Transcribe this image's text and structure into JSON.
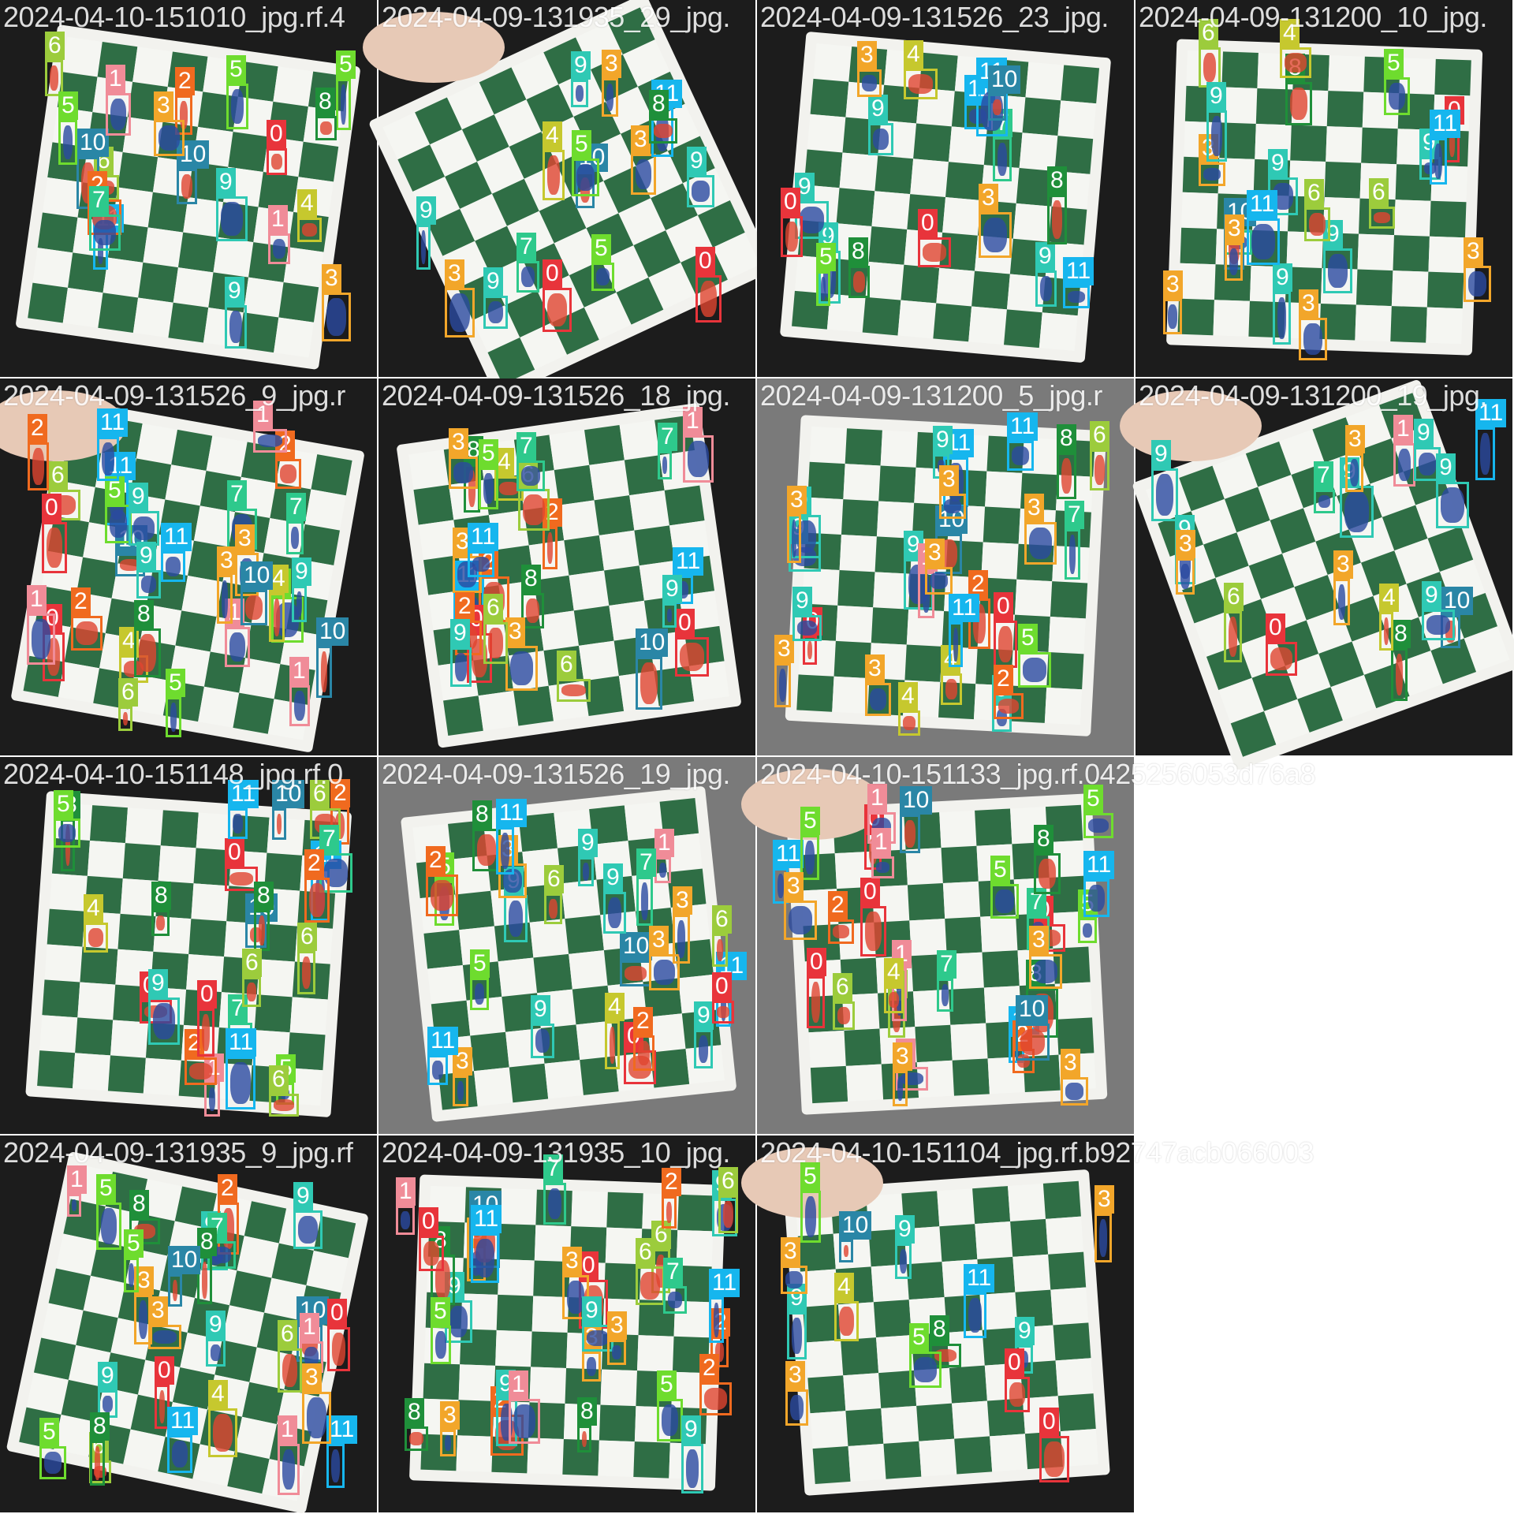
{
  "palette": {
    "0": "#e8343b",
    "1": "#f08c98",
    "2": "#f06a1f",
    "3": "#f2a62a",
    "4": "#c6c82e",
    "5": "#6edc2e",
    "6": "#9ccc3c",
    "7": "#2ec98c",
    "8": "#1f8f3a",
    "9": "#2fc9b4",
    "10": "#2a86a6",
    "11": "#16b6ee"
  },
  "tiles": [
    {
      "name": "2024-04-10-151010_jpg.rf.4",
      "scene": "dark",
      "labels": [
        {
          "c": "6"
        },
        {
          "c": "4"
        },
        {
          "c": "1"
        },
        {
          "c": "11"
        },
        {
          "c": "2"
        },
        {
          "c": "5"
        },
        {
          "c": "10"
        },
        {
          "c": "1"
        },
        {
          "c": "2"
        },
        {
          "c": "0"
        },
        {
          "c": "8"
        },
        {
          "c": "7"
        },
        {
          "c": "5"
        },
        {
          "c": "6"
        },
        {
          "c": "9"
        },
        {
          "c": "10"
        },
        {
          "c": "3"
        },
        {
          "c": "5"
        },
        {
          "c": "3"
        },
        {
          "c": "9"
        }
      ]
    },
    {
      "name": "2024-04-09-131935_29_jpg.",
      "scene": "board",
      "labels": [
        {
          "c": "4"
        },
        {
          "c": "3"
        },
        {
          "c": "11"
        },
        {
          "c": "9"
        },
        {
          "c": "9"
        },
        {
          "c": "10"
        },
        {
          "c": "8"
        },
        {
          "c": "0"
        },
        {
          "c": "0"
        },
        {
          "c": "9"
        },
        {
          "c": "5"
        },
        {
          "c": "3"
        },
        {
          "c": "5"
        },
        {
          "c": "3"
        },
        {
          "c": "9"
        },
        {
          "c": "7"
        }
      ]
    },
    {
      "name": "2024-04-09-131526_23_jpg.",
      "scene": "board",
      "labels": [
        {
          "c": "7"
        },
        {
          "c": "11"
        },
        {
          "c": "9"
        },
        {
          "c": "8"
        },
        {
          "c": "11"
        },
        {
          "c": "9"
        },
        {
          "c": "4"
        },
        {
          "c": "3"
        },
        {
          "c": "10"
        },
        {
          "c": "9"
        },
        {
          "c": "9"
        },
        {
          "c": "0"
        },
        {
          "c": "0"
        },
        {
          "c": "8"
        },
        {
          "c": "11"
        },
        {
          "c": "3"
        },
        {
          "c": "5"
        }
      ]
    },
    {
      "name": "2024-04-09-131200_10_jpg.",
      "scene": "board",
      "labels": [
        {
          "c": "0"
        },
        {
          "c": "3"
        },
        {
          "c": "9"
        },
        {
          "c": "6"
        },
        {
          "c": "7"
        },
        {
          "c": "5"
        },
        {
          "c": "3"
        },
        {
          "c": "11"
        },
        {
          "c": "9"
        },
        {
          "c": "10"
        },
        {
          "c": "3"
        },
        {
          "c": "8"
        },
        {
          "c": "9"
        },
        {
          "c": "11"
        },
        {
          "c": "9"
        },
        {
          "c": "3"
        },
        {
          "c": "6"
        },
        {
          "c": "4"
        },
        {
          "c": "3"
        },
        {
          "c": "9"
        },
        {
          "c": "6"
        }
      ]
    },
    {
      "name": "2024-04-09-131526_9_jpg.r",
      "scene": "board",
      "labels": [
        {
          "c": "6"
        },
        {
          "c": "4"
        },
        {
          "c": "1"
        },
        {
          "c": "11"
        },
        {
          "c": "2"
        },
        {
          "c": "10"
        },
        {
          "c": "1"
        },
        {
          "c": "2"
        },
        {
          "c": "0"
        },
        {
          "c": "8"
        },
        {
          "c": "7"
        },
        {
          "c": "5"
        },
        {
          "c": "11"
        },
        {
          "c": "9"
        },
        {
          "c": "2"
        },
        {
          "c": "1"
        },
        {
          "c": "7"
        },
        {
          "c": "9"
        },
        {
          "c": "6"
        },
        {
          "c": "3"
        },
        {
          "c": "5"
        },
        {
          "c": "4"
        },
        {
          "c": "3"
        },
        {
          "c": "10"
        },
        {
          "c": "0"
        },
        {
          "c": "5"
        },
        {
          "c": "11"
        },
        {
          "c": "10"
        },
        {
          "c": "9"
        },
        {
          "c": "1"
        }
      ]
    },
    {
      "name": "2024-04-09-131526_18_jpg.",
      "scene": "board",
      "labels": [
        {
          "c": "4"
        },
        {
          "c": "11"
        },
        {
          "c": "11"
        },
        {
          "c": "10"
        },
        {
          "c": "8"
        },
        {
          "c": "0"
        },
        {
          "c": "2"
        },
        {
          "c": "0"
        },
        {
          "c": "7"
        },
        {
          "c": "6"
        },
        {
          "c": "3"
        },
        {
          "c": "8"
        },
        {
          "c": "3"
        },
        {
          "c": "2"
        },
        {
          "c": "9"
        },
        {
          "c": "1"
        },
        {
          "c": "3"
        },
        {
          "c": "5"
        },
        {
          "c": "6"
        },
        {
          "c": "2"
        },
        {
          "c": "11"
        },
        {
          "c": "6"
        },
        {
          "c": "9"
        },
        {
          "c": "7"
        }
      ]
    },
    {
      "name": "2024-04-09-131200_5_jpg.r",
      "scene": "board",
      "labels": [
        {
          "c": "11"
        },
        {
          "c": "9"
        },
        {
          "c": "8"
        },
        {
          "c": "9"
        },
        {
          "c": "6"
        },
        {
          "c": "9"
        },
        {
          "c": "7"
        },
        {
          "c": "9"
        },
        {
          "c": "10"
        },
        {
          "c": "9"
        },
        {
          "c": "3"
        },
        {
          "c": "2"
        },
        {
          "c": "0"
        },
        {
          "c": "3"
        },
        {
          "c": "1"
        },
        {
          "c": "3"
        },
        {
          "c": "4"
        },
        {
          "c": "0"
        },
        {
          "c": "3"
        },
        {
          "c": "2"
        },
        {
          "c": "3"
        },
        {
          "c": "5"
        },
        {
          "c": "11"
        },
        {
          "c": "9"
        },
        {
          "c": "4"
        },
        {
          "c": "3"
        },
        {
          "c": "11"
        }
      ]
    },
    {
      "name": "2024-04-09-131200_19_jpg.",
      "scene": "board",
      "labels": [
        {
          "c": "1"
        },
        {
          "c": "9"
        },
        {
          "c": "10"
        },
        {
          "c": "0"
        },
        {
          "c": "3"
        },
        {
          "c": "9"
        },
        {
          "c": "7"
        },
        {
          "c": "9"
        },
        {
          "c": "6"
        },
        {
          "c": "9"
        },
        {
          "c": "8"
        },
        {
          "c": "9"
        },
        {
          "c": "11"
        },
        {
          "c": "3"
        },
        {
          "c": "3"
        },
        {
          "c": "4"
        },
        {
          "c": "9"
        }
      ]
    },
    {
      "name": "2024-04-10-151148_jpg.rf.0",
      "scene": "board",
      "labels": [
        {
          "c": "2"
        },
        {
          "c": "10"
        },
        {
          "c": "11"
        },
        {
          "c": "0"
        },
        {
          "c": "8"
        },
        {
          "c": "7"
        },
        {
          "c": "5"
        },
        {
          "c": "5"
        },
        {
          "c": "6"
        },
        {
          "c": "7"
        },
        {
          "c": "8"
        },
        {
          "c": "0"
        },
        {
          "c": "2"
        },
        {
          "c": "11"
        },
        {
          "c": "10"
        },
        {
          "c": "1"
        },
        {
          "c": "4"
        },
        {
          "c": "2"
        },
        {
          "c": "11"
        },
        {
          "c": "8"
        },
        {
          "c": "0"
        },
        {
          "c": "6"
        },
        {
          "c": "6"
        },
        {
          "c": "9"
        },
        {
          "c": "6"
        }
      ]
    },
    {
      "name": "2024-04-09-131526_19_jpg.",
      "scene": "board",
      "labels": [
        {
          "c": "3"
        },
        {
          "c": "4"
        },
        {
          "c": "9"
        },
        {
          "c": "11"
        },
        {
          "c": "10"
        },
        {
          "c": "8"
        },
        {
          "c": "0"
        },
        {
          "c": "0"
        },
        {
          "c": "9"
        },
        {
          "c": "5"
        },
        {
          "c": "11"
        },
        {
          "c": "1"
        },
        {
          "c": "3"
        },
        {
          "c": "2"
        },
        {
          "c": "9"
        },
        {
          "c": "6"
        },
        {
          "c": "9"
        },
        {
          "c": "6"
        },
        {
          "c": "7"
        },
        {
          "c": "5"
        },
        {
          "c": "3"
        },
        {
          "c": "11"
        },
        {
          "c": "9"
        },
        {
          "c": "2"
        },
        {
          "c": "3"
        }
      ]
    },
    {
      "name": "2024-04-10-151133_jpg.rf.0425256053d76a8",
      "scene": "board",
      "labels": [
        {
          "c": "1"
        },
        {
          "c": "7"
        },
        {
          "c": "5"
        },
        {
          "c": "0"
        },
        {
          "c": "1"
        },
        {
          "c": "0"
        },
        {
          "c": "6"
        },
        {
          "c": "2"
        },
        {
          "c": "1"
        },
        {
          "c": "0"
        },
        {
          "c": "7"
        },
        {
          "c": "6"
        },
        {
          "c": "11"
        },
        {
          "c": "8"
        },
        {
          "c": "11"
        },
        {
          "c": "4"
        },
        {
          "c": "3"
        },
        {
          "c": "10"
        },
        {
          "c": "3"
        },
        {
          "c": "2"
        },
        {
          "c": "0"
        },
        {
          "c": "8"
        },
        {
          "c": "5"
        },
        {
          "c": "10"
        },
        {
          "c": "11"
        },
        {
          "c": "1"
        },
        {
          "c": "5"
        },
        {
          "c": "3"
        },
        {
          "c": "3"
        },
        {
          "c": "5"
        }
      ]
    },
    {
      "name": "2024-04-09-131935_9_jpg.rf",
      "scene": "board",
      "labels": [
        {
          "c": "4"
        },
        {
          "c": "3"
        },
        {
          "c": "11"
        },
        {
          "c": "9"
        },
        {
          "c": "10"
        },
        {
          "c": "0"
        },
        {
          "c": "0"
        },
        {
          "c": "8"
        },
        {
          "c": "5"
        },
        {
          "c": "3"
        },
        {
          "c": "11"
        },
        {
          "c": "9"
        },
        {
          "c": "2"
        },
        {
          "c": "1"
        },
        {
          "c": "7"
        },
        {
          "c": "6"
        },
        {
          "c": "9"
        },
        {
          "c": "6"
        },
        {
          "c": "3"
        },
        {
          "c": "5"
        },
        {
          "c": "9"
        },
        {
          "c": "5"
        },
        {
          "c": "8"
        },
        {
          "c": "10"
        },
        {
          "c": "1"
        },
        {
          "c": "1"
        },
        {
          "c": "8"
        }
      ]
    },
    {
      "name": "2024-04-09-131935_10_jpg.",
      "scene": "board",
      "labels": [
        {
          "c": "5"
        },
        {
          "c": "3"
        },
        {
          "c": "2"
        },
        {
          "c": "9"
        },
        {
          "c": "7"
        },
        {
          "c": "1"
        },
        {
          "c": "0"
        },
        {
          "c": "8"
        },
        {
          "c": "6"
        },
        {
          "c": "3"
        },
        {
          "c": "9"
        },
        {
          "c": "2"
        },
        {
          "c": "3"
        },
        {
          "c": "11"
        },
        {
          "c": "10"
        },
        {
          "c": "8"
        },
        {
          "c": "9"
        },
        {
          "c": "11"
        },
        {
          "c": "9"
        },
        {
          "c": "6"
        },
        {
          "c": "3"
        },
        {
          "c": "7"
        },
        {
          "c": "5"
        },
        {
          "c": "3"
        },
        {
          "c": "2"
        },
        {
          "c": "9"
        },
        {
          "c": "1"
        },
        {
          "c": "0"
        },
        {
          "c": "8"
        },
        {
          "c": "6"
        },
        {
          "c": "2"
        }
      ]
    },
    {
      "name": "2024-04-10-151104_jpg.rf.b92747acb066003",
      "scene": "board",
      "labels": [
        {
          "c": "3"
        },
        {
          "c": "5"
        },
        {
          "c": "3"
        },
        {
          "c": "4"
        },
        {
          "c": "9"
        },
        {
          "c": "11"
        },
        {
          "c": "10"
        },
        {
          "c": "9"
        },
        {
          "c": "8"
        },
        {
          "c": "0"
        },
        {
          "c": "0"
        },
        {
          "c": "9"
        },
        {
          "c": "5"
        },
        {
          "c": "3"
        }
      ]
    }
  ]
}
